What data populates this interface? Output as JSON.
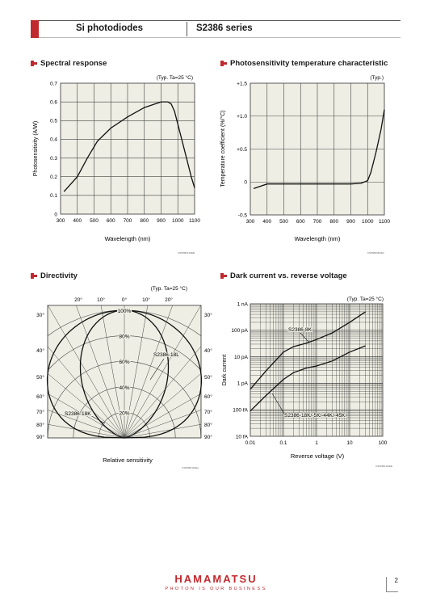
{
  "header": {
    "left_title": "Si photodiodes",
    "right_title": "S2386 series",
    "accent_color": "#c0292e"
  },
  "footer": {
    "brand": "HAMAMATSU",
    "tagline": "PHOTON IS OUR BUSINESS",
    "page_number": "2"
  },
  "charts": {
    "spectral": {
      "title": "Spectral response",
      "condition": "(Typ. Ta=25 °C)",
      "xlabel": "Wavelength (nm)",
      "ylabel": "Photosensitivity (A/W)",
      "code": "KSPDB0133EB",
      "xticks": [
        "300",
        "400",
        "500",
        "600",
        "700",
        "800",
        "900",
        "1000",
        "1100"
      ],
      "yticks": [
        "0",
        "0.1",
        "0.2",
        "0.3",
        "0.4",
        "0.5",
        "0.6",
        "0.7"
      ]
    },
    "temp": {
      "title": "Photosensitivity temperature characteristic",
      "condition": "(Typ.)",
      "xlabel": "Wavelength (nm)",
      "ylabel": "Temperature coefficient (%/°C)",
      "code": "KSPDB0003EC",
      "xticks": [
        "300",
        "400",
        "500",
        "600",
        "700",
        "800",
        "900",
        "1000",
        "1100"
      ],
      "yticks": [
        "+1.5",
        "+1.0",
        "+0.5",
        "0",
        "-0.5"
      ]
    },
    "directivity": {
      "title": "Directivity",
      "condition": "(Typ. Ta=25 °C)",
      "xlabel": "Relative sensitivity",
      "code": "KSPDB0115EA",
      "angle_top": [
        "20°",
        "10°",
        "0°",
        "10°",
        "20°"
      ],
      "angle_sides": [
        "30°",
        "40°",
        "50°",
        "60°",
        "70°",
        "80°",
        "90°"
      ],
      "radial": [
        "100%",
        "80%",
        "60%",
        "40%",
        "20%"
      ],
      "label_a": "S2386-18L",
      "label_b": "S2386-18K"
    },
    "dark": {
      "title": "Dark current vs. reverse voltage",
      "condition": "(Typ. Ta=25 °C)",
      "xlabel": "Reverse voltage (V)",
      "ylabel": "Dark current",
      "code": "KSPDB0112EE",
      "xticks": [
        "0.01",
        "0.1",
        "1",
        "10",
        "100"
      ],
      "yticks": [
        "1 nA",
        "100 pA",
        "10 pA",
        "1 pA",
        "100 fA",
        "10 fA"
      ],
      "label_a": "S2386-8K",
      "label_b": "S2386-18K/-5K/-44K/-45K"
    }
  },
  "chart_data": [
    {
      "type": "line",
      "title": "Spectral response",
      "xlabel": "Wavelength (nm)",
      "ylabel": "Photosensitivity (A/W)",
      "xlim": [
        300,
        1100
      ],
      "ylim": [
        0,
        0.7
      ],
      "x": [
        320,
        400,
        460,
        520,
        600,
        700,
        800,
        900,
        940,
        960,
        980,
        1000,
        1040,
        1080,
        1100
      ],
      "y": [
        0.12,
        0.2,
        0.3,
        0.39,
        0.46,
        0.52,
        0.57,
        0.6,
        0.6,
        0.59,
        0.55,
        0.48,
        0.34,
        0.2,
        0.14
      ]
    },
    {
      "type": "line",
      "title": "Photosensitivity temperature characteristic",
      "xlabel": "Wavelength (nm)",
      "ylabel": "Temperature coefficient (%/°C)",
      "xlim": [
        300,
        1100
      ],
      "ylim": [
        -0.5,
        1.5
      ],
      "x": [
        320,
        400,
        500,
        600,
        700,
        800,
        900,
        960,
        1000,
        1020,
        1050,
        1080,
        1100
      ],
      "y": [
        -0.1,
        -0.03,
        -0.03,
        -0.03,
        -0.03,
        -0.03,
        -0.03,
        -0.02,
        0.02,
        0.15,
        0.45,
        0.8,
        1.1
      ]
    },
    {
      "type": "line",
      "title": "Dark current vs. reverse voltage",
      "xlabel": "Reverse voltage (V)",
      "ylabel": "Dark current",
      "xscale": "log",
      "yscale": "log",
      "xlim": [
        0.01,
        100
      ],
      "ylim": [
        1e-14,
        1e-09
      ],
      "series": [
        {
          "name": "S2386-8K",
          "x": [
            0.01,
            0.03,
            0.1,
            0.2,
            0.5,
            1,
            3,
            10,
            30
          ],
          "y": [
            6e-13,
            3e-12,
            1.5e-11,
            2.4e-11,
            3.3e-11,
            4.5e-11,
            8e-11,
            2e-10,
            5e-10
          ]
        },
        {
          "name": "S2386-18K/-5K/-44K/-45K",
          "x": [
            0.01,
            0.03,
            0.1,
            0.2,
            0.5,
            1,
            3,
            10,
            30
          ],
          "y": [
            9e-14,
            3.5e-13,
            1.4e-12,
            2.5e-12,
            3.8e-12,
            4.5e-12,
            7e-12,
            1.5e-11,
            2.6e-11
          ]
        }
      ]
    }
  ]
}
